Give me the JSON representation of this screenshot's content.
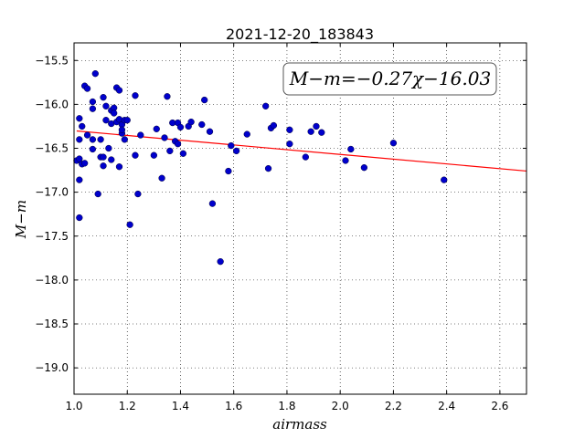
{
  "chart_data": {
    "type": "scatter",
    "title": "2021-12-20_183843",
    "xlabel": "airmass",
    "ylabel": "M−m",
    "xlim": [
      1.0,
      2.7
    ],
    "ylim": [
      -19.3,
      -15.3
    ],
    "y_inverted": true,
    "grid": true,
    "xticks": [
      1.0,
      1.2,
      1.4,
      1.6,
      1.8,
      2.0,
      2.2,
      2.4,
      2.6
    ],
    "xtick_labels": [
      "1.0",
      "1.2",
      "1.4",
      "1.6",
      "1.8",
      "2.0",
      "2.2",
      "2.4",
      "2.6"
    ],
    "yticks": [
      -15.5,
      -16.0,
      -16.5,
      -17.0,
      -17.5,
      -18.0,
      -18.5,
      -19.0
    ],
    "ytick_labels": [
      "−15.5",
      "−16.0",
      "−16.5",
      "−17.0",
      "−17.5",
      "−18.0",
      "−18.5",
      "−19.0"
    ],
    "annotation": "M−m=−0.27χ−16.03",
    "fit": {
      "slope": -0.27,
      "intercept": -16.03,
      "color": "#ff0000"
    },
    "marker_color": "#0000cc",
    "points": [
      [
        1.01,
        -16.64
      ],
      [
        1.02,
        -17.29
      ],
      [
        1.02,
        -16.86
      ],
      [
        1.02,
        -16.62
      ],
      [
        1.02,
        -16.4
      ],
      [
        1.02,
        -16.16
      ],
      [
        1.03,
        -16.68
      ],
      [
        1.03,
        -16.25
      ],
      [
        1.04,
        -16.67
      ],
      [
        1.04,
        -15.79
      ],
      [
        1.05,
        -15.82
      ],
      [
        1.05,
        -16.35
      ],
      [
        1.07,
        -15.97
      ],
      [
        1.07,
        -16.05
      ],
      [
        1.07,
        -16.4
      ],
      [
        1.07,
        -16.51
      ],
      [
        1.08,
        -15.65
      ],
      [
        1.09,
        -17.02
      ],
      [
        1.1,
        -16.6
      ],
      [
        1.1,
        -16.4
      ],
      [
        1.11,
        -15.92
      ],
      [
        1.11,
        -16.6
      ],
      [
        1.11,
        -16.7
      ],
      [
        1.12,
        -16.02
      ],
      [
        1.12,
        -16.18
      ],
      [
        1.13,
        -16.5
      ],
      [
        1.14,
        -16.22
      ],
      [
        1.14,
        -16.07
      ],
      [
        1.14,
        -16.63
      ],
      [
        1.15,
        -16.04
      ],
      [
        1.15,
        -16.1
      ],
      [
        1.16,
        -15.81
      ],
      [
        1.16,
        -16.2
      ],
      [
        1.17,
        -16.17
      ],
      [
        1.17,
        -15.84
      ],
      [
        1.17,
        -16.71
      ],
      [
        1.18,
        -16.23
      ],
      [
        1.18,
        -16.33
      ],
      [
        1.18,
        -16.29
      ],
      [
        1.19,
        -16.18
      ],
      [
        1.19,
        -16.4
      ],
      [
        1.2,
        -16.18
      ],
      [
        1.21,
        -17.37
      ],
      [
        1.23,
        -15.9
      ],
      [
        1.23,
        -16.58
      ],
      [
        1.24,
        -17.02
      ],
      [
        1.25,
        -16.35
      ],
      [
        1.3,
        -16.58
      ],
      [
        1.31,
        -16.28
      ],
      [
        1.33,
        -16.84
      ],
      [
        1.34,
        -16.38
      ],
      [
        1.35,
        -15.91
      ],
      [
        1.36,
        -16.53
      ],
      [
        1.37,
        -16.21
      ],
      [
        1.38,
        -16.42
      ],
      [
        1.39,
        -16.45
      ],
      [
        1.39,
        -16.21
      ],
      [
        1.4,
        -16.26
      ],
      [
        1.41,
        -16.56
      ],
      [
        1.43,
        -16.25
      ],
      [
        1.44,
        -16.2
      ],
      [
        1.48,
        -16.23
      ],
      [
        1.49,
        -15.95
      ],
      [
        1.51,
        -16.31
      ],
      [
        1.52,
        -17.13
      ],
      [
        1.55,
        -17.79
      ],
      [
        1.58,
        -16.76
      ],
      [
        1.59,
        -16.47
      ],
      [
        1.61,
        -16.53
      ],
      [
        1.65,
        -16.34
      ],
      [
        1.72,
        -16.02
      ],
      [
        1.73,
        -16.73
      ],
      [
        1.74,
        -16.27
      ],
      [
        1.75,
        -16.24
      ],
      [
        1.81,
        -16.29
      ],
      [
        1.81,
        -16.45
      ],
      [
        1.87,
        -16.6
      ],
      [
        1.89,
        -16.31
      ],
      [
        1.91,
        -16.25
      ],
      [
        1.93,
        -16.32
      ],
      [
        2.02,
        -16.64
      ],
      [
        2.04,
        -16.51
      ],
      [
        2.09,
        -16.72
      ],
      [
        2.2,
        -16.44
      ],
      [
        2.39,
        -16.86
      ]
    ]
  }
}
